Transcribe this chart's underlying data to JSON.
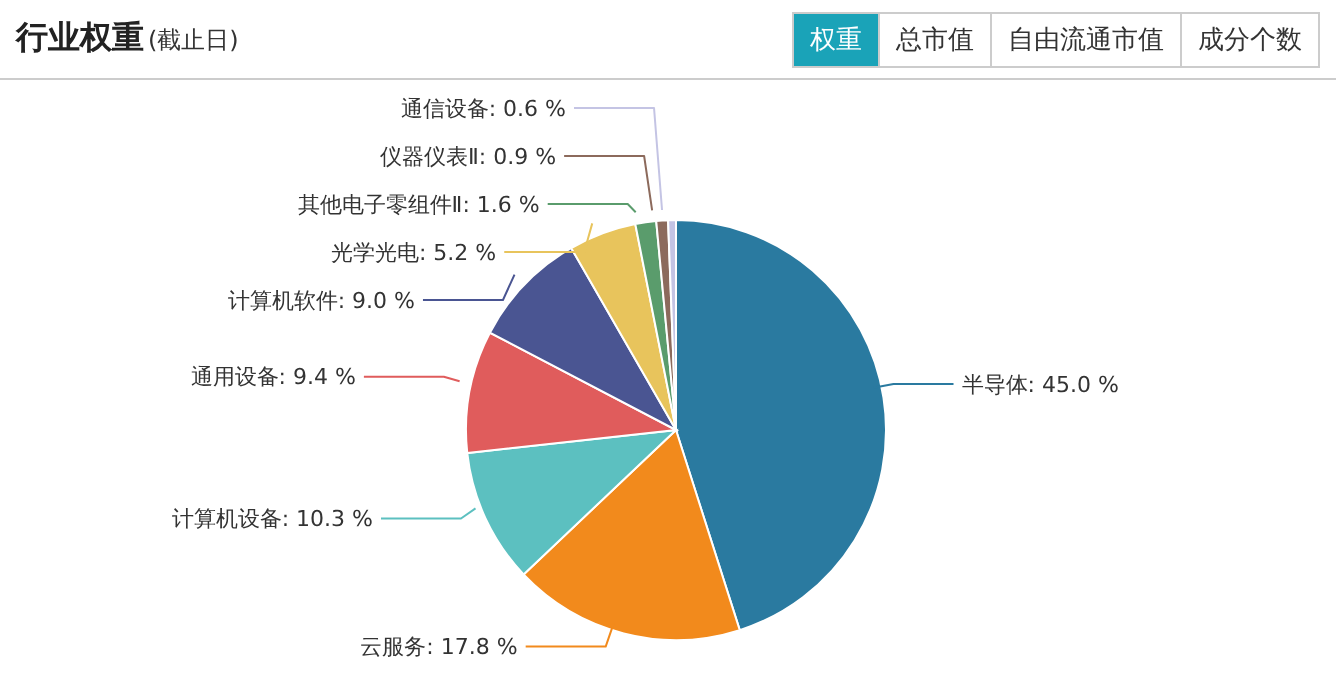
{
  "chart_data": {
    "type": "pie",
    "title": "行业权重",
    "subtitle": "(截止日)",
    "annotations": [
      "权重",
      "总市值",
      "自由流通市值",
      "成分个数"
    ],
    "categories": [
      "半导体",
      "云服务",
      "计算机设备",
      "通用设备",
      "计算机软件",
      "光学光电",
      "其他电子零组件Ⅱ",
      "仪器仪表Ⅱ",
      "通信设备"
    ],
    "values": [
      45.0,
      17.8,
      10.3,
      9.4,
      9.0,
      5.2,
      1.6,
      0.9,
      0.6
    ],
    "value_labels": [
      "45.0 %",
      "17.8 %",
      "10.3 %",
      "9.4 %",
      "9.0 %",
      "5.2 %",
      "1.6 %",
      "0.9 %",
      "0.6 %"
    ],
    "colors": [
      "#2a7aa0",
      "#f28a1c",
      "#5cc0c0",
      "#e05c5c",
      "#4a5592",
      "#e8c45c",
      "#5a9c6c",
      "#8c6a5c",
      "#c4c4e4"
    ]
  }
}
